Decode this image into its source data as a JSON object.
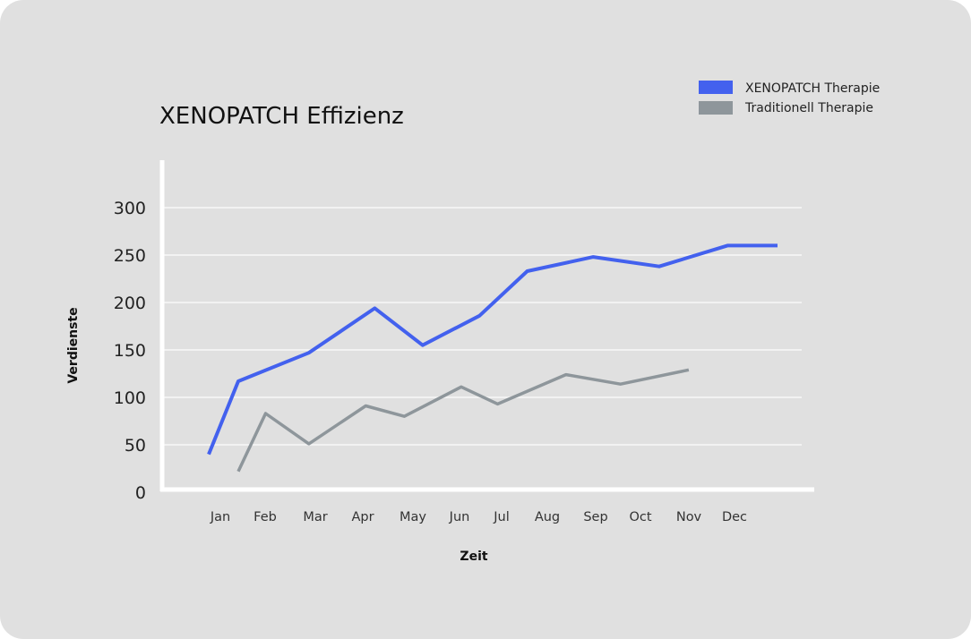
{
  "chart_data": {
    "type": "line",
    "title": "XENOPATCH Effizienz",
    "xlabel": "Zeit",
    "ylabel": "Verdienste",
    "categories": [
      "Jan",
      "Feb",
      "Mar",
      "Apr",
      "May",
      "Jun",
      "Jul",
      "Aug",
      "Sep",
      "Oct",
      "Nov",
      "Dec"
    ],
    "yticks": [
      0,
      50,
      100,
      150,
      200,
      250,
      300
    ],
    "ylim": [
      0,
      300
    ],
    "grid": true,
    "legend_position": "top-right",
    "series": [
      {
        "name": "XENOPATCH Therapie",
        "color": "#4361ee",
        "x": [
          0.0,
          0.65,
          2.2,
          3.65,
          4.7,
          5.95,
          7.0,
          8.45,
          9.9,
          11.4,
          12.5
        ],
        "values": [
          40,
          117,
          147,
          194,
          155,
          186,
          233,
          248,
          238,
          260,
          260
        ]
      },
      {
        "name": "Traditionell Therapie",
        "color": "#8e969b",
        "x": [
          0.65,
          1.25,
          2.2,
          3.45,
          4.3,
          5.55,
          6.35,
          7.85,
          9.05,
          10.55
        ],
        "values": [
          22,
          83,
          51,
          91,
          80,
          111,
          93,
          124,
          114,
          129
        ]
      }
    ]
  }
}
